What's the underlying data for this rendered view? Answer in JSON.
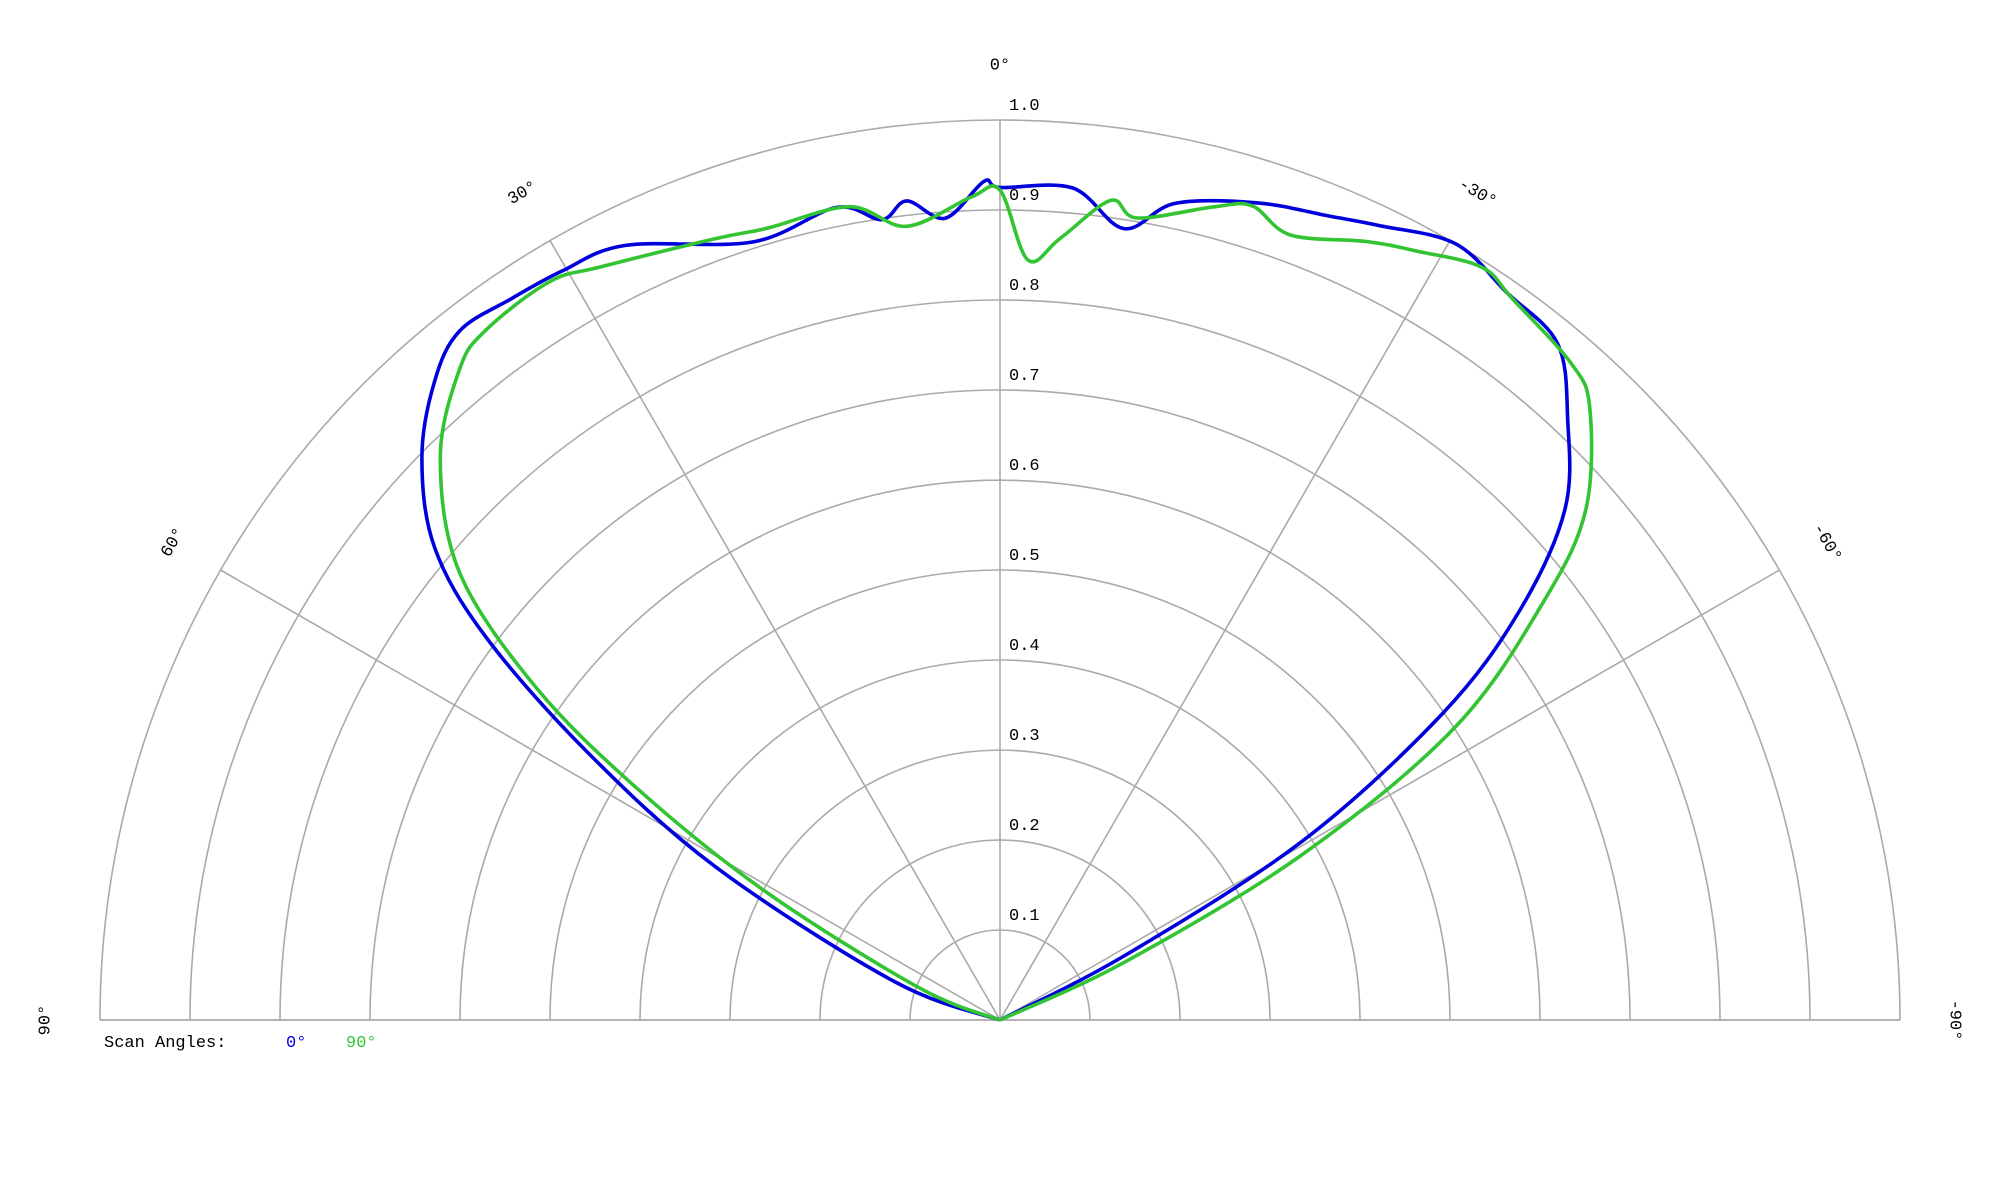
{
  "chart_data": {
    "type": "polar",
    "angle_range": [
      -90,
      90
    ],
    "angle_zero": "top",
    "angle_positive_direction": "counterclockwise",
    "radius_range": [
      0,
      1.0
    ],
    "grid": true,
    "radial_tick_labels": [
      "0.1",
      "0.2",
      "0.3",
      "0.4",
      "0.5",
      "0.6",
      "0.7",
      "0.8",
      "0.9",
      "1.0"
    ],
    "radial_ticks": [
      0.1,
      0.2,
      0.3,
      0.4,
      0.5,
      0.6,
      0.7,
      0.8,
      0.9,
      1.0
    ],
    "angle_ticks": [
      90,
      60,
      30,
      0,
      -30,
      -60,
      -90
    ],
    "angle_tick_labels": [
      "90°",
      "60°",
      "30°",
      "0°",
      "-30°",
      "-60°",
      "-90°"
    ],
    "legend": {
      "title": "Scan Angles:",
      "placement": "bottom-left",
      "entries": [
        {
          "label": "0°",
          "color": "#0000dd"
        },
        {
          "label": "90°",
          "color": "#33c433"
        }
      ]
    },
    "series": [
      {
        "name": "0°",
        "color": "#0000dd",
        "points": [
          [
            90,
            0
          ],
          [
            70,
            0.125
          ],
          [
            61.7,
            0.359
          ],
          [
            57,
            0.547
          ],
          [
            53.3,
            0.713
          ],
          [
            50.1,
            0.819
          ],
          [
            45.8,
            0.896
          ],
          [
            41.5,
            0.948
          ],
          [
            38.1,
            0.973
          ],
          [
            34.1,
            0.968
          ],
          [
            30.3,
            0.964
          ],
          [
            25.8,
            0.956
          ],
          [
            17.6,
            0.907
          ],
          [
            11.4,
            0.921
          ],
          [
            8.4,
            0.899
          ],
          [
            6.5,
            0.916
          ],
          [
            3.9,
            0.893
          ],
          [
            1.1,
            0.932
          ],
          [
            0,
            0.925
          ],
          [
            -5,
            0.928
          ],
          [
            -8.9,
            0.89
          ],
          [
            -12.1,
            0.928
          ],
          [
            -17.5,
            0.952
          ],
          [
            -22.2,
            0.965
          ],
          [
            -25.5,
            0.978
          ],
          [
            -30.4,
            1.0
          ],
          [
            -34.9,
            0.985
          ],
          [
            -39.5,
            0.974
          ],
          [
            -43.4,
            0.918
          ],
          [
            -47.9,
            0.846
          ],
          [
            -51.8,
            0.734
          ],
          [
            -55.3,
            0.598
          ],
          [
            -59.4,
            0.39
          ],
          [
            -62.7,
            0.155
          ],
          [
            -90,
            0
          ]
        ]
      },
      {
        "name": "90°",
        "color": "#33c433",
        "points": [
          [
            90,
            0
          ],
          [
            68.3,
            0.096
          ],
          [
            61.3,
            0.296
          ],
          [
            57.5,
            0.476
          ],
          [
            54.4,
            0.633
          ],
          [
            50.4,
            0.779
          ],
          [
            44.9,
            0.881
          ],
          [
            39.7,
            0.94
          ],
          [
            36.7,
            0.956
          ],
          [
            31.4,
            0.961
          ],
          [
            27.9,
            0.947
          ],
          [
            20,
            0.924
          ],
          [
            16.4,
            0.917
          ],
          [
            10.5,
            0.919
          ],
          [
            6.7,
            0.888
          ],
          [
            2,
            0.915
          ],
          [
            0,
            0.922
          ],
          [
            -2.1,
            0.845
          ],
          [
            -4.4,
            0.871
          ],
          [
            -7.7,
            0.919
          ],
          [
            -9.7,
            0.904
          ],
          [
            -14.7,
            0.934
          ],
          [
            -17.2,
            0.947
          ],
          [
            -20.3,
            0.93
          ],
          [
            -25.2,
            0.956
          ],
          [
            -28.5,
            0.972
          ],
          [
            -32.6,
            0.993
          ],
          [
            -35.4,
            0.983
          ],
          [
            -41,
            0.967
          ],
          [
            -43.9,
            0.945
          ],
          [
            -48.9,
            0.864
          ],
          [
            -52.3,
            0.766
          ],
          [
            -57.2,
            0.603
          ],
          [
            -61.3,
            0.383
          ],
          [
            -65.1,
            0.152
          ],
          [
            -90,
            0
          ]
        ]
      }
    ]
  }
}
